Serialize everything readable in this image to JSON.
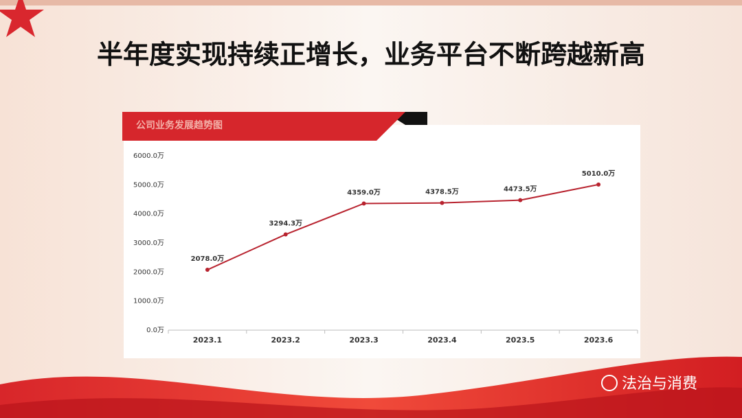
{
  "chart_data": {
    "type": "line",
    "title": "半年度实现持续正增长，业务平台不断跨越新高",
    "subtitle": "公司业务发展趋势图",
    "categories": [
      "2023.1",
      "2023.2",
      "2023.3",
      "2023.4",
      "2023.5",
      "2023.6"
    ],
    "values": [
      2078,
      3294.3,
      4359,
      4378.5,
      4473.5,
      5010
    ],
    "value_labels": [
      "2078.0万",
      "3294.3万",
      "4359.0万",
      "4378.5万",
      "4473.5万",
      "5010.0万"
    ],
    "color": "#b8232f",
    "ylim": [
      0,
      6000
    ],
    "yticks": [
      {
        "value": 0,
        "label": "0.0万"
      },
      {
        "value": 1000,
        "label": "1000.0万"
      },
      {
        "value": 2000,
        "label": "2000.0万"
      },
      {
        "value": 3000,
        "label": "3000.0万"
      },
      {
        "value": 4000,
        "label": "4000.0万"
      },
      {
        "value": 5000,
        "label": "5000.0万"
      },
      {
        "value": 6000,
        "label": "6000.0万"
      }
    ],
    "grid": false
  },
  "watermark": "法治与消费"
}
